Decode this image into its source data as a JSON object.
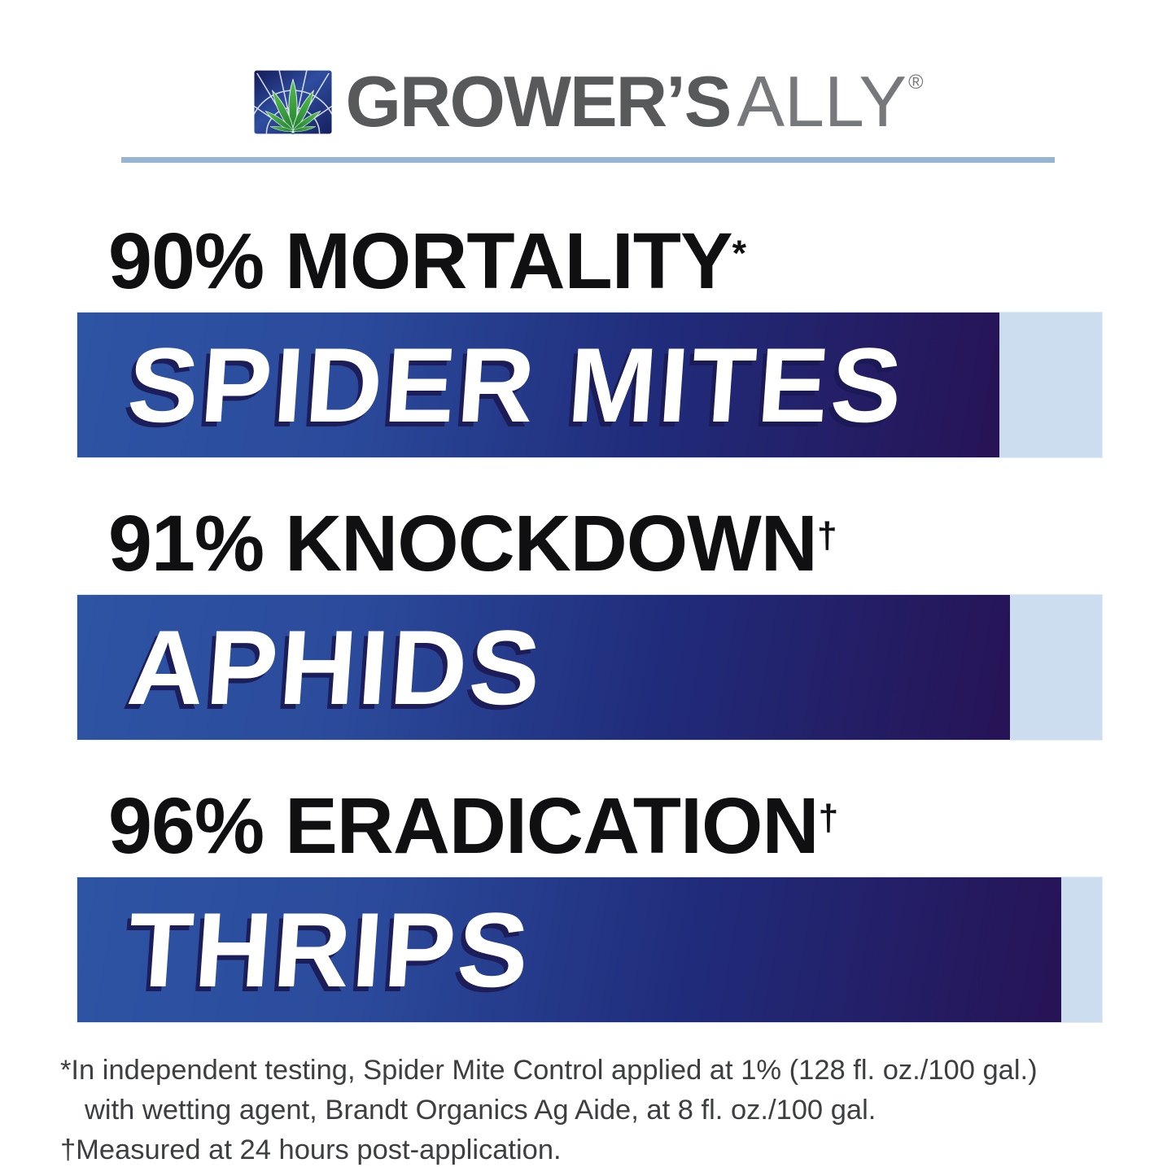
{
  "header": {
    "brand_bold": "GROWER’S",
    "brand_light": "ALLY",
    "registered_mark": "®",
    "logo_icon": "cannabis-leaf-icon",
    "colors": {
      "brand_gray_bold": "#58595b",
      "brand_gray_light": "#77787b",
      "divider_blue": "#96b4d4",
      "logo_blue": "#2f4da0",
      "leaf_green": "#58bd4c"
    }
  },
  "chart_data": {
    "type": "bar",
    "orientation": "horizontal",
    "value_unit": "%",
    "xlim": [
      0,
      100
    ],
    "grid": false,
    "legend": false,
    "items": [
      {
        "metric": "90% MORTALITY",
        "note_symbol": "*",
        "pest": "SPIDER MITES",
        "value": 90
      },
      {
        "metric": "91% KNOCKDOWN",
        "note_symbol": "†",
        "pest": "APHIDS",
        "value": 91
      },
      {
        "metric": "96% ERADICATION",
        "note_symbol": "†",
        "pest": "THRIPS",
        "value": 96
      }
    ],
    "bar_colors": {
      "fill_start": "#2e54a4",
      "fill_end": "#271355",
      "track": "#cbddee",
      "label_text": "#ffffff",
      "label_shadow": "#1b1a55"
    }
  },
  "footnotes": [
    "*In independent testing, Spider Mite Control applied at 1% (128 fl. oz./100 gal.)",
    "with wetting agent, Brandt Organics Ag Aide, at 8 fl. oz./100 gal.",
    "†Measured at 24 hours post-application."
  ]
}
